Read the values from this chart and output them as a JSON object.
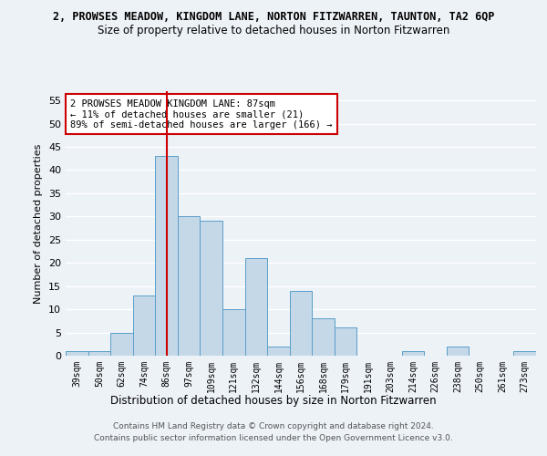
{
  "title": "2, PROWSES MEADOW, KINGDOM LANE, NORTON FITZWARREN, TAUNTON, TA2 6QP",
  "subtitle": "Size of property relative to detached houses in Norton Fitzwarren",
  "xlabel": "Distribution of detached houses by size in Norton Fitzwarren",
  "ylabel": "Number of detached properties",
  "categories": [
    "39sqm",
    "50sqm",
    "62sqm",
    "74sqm",
    "86sqm",
    "97sqm",
    "109sqm",
    "121sqm",
    "132sqm",
    "144sqm",
    "156sqm",
    "168sqm",
    "179sqm",
    "191sqm",
    "203sqm",
    "214sqm",
    "226sqm",
    "238sqm",
    "250sqm",
    "261sqm",
    "273sqm"
  ],
  "values": [
    1,
    1,
    5,
    13,
    43,
    30,
    29,
    10,
    21,
    2,
    14,
    8,
    6,
    0,
    0,
    1,
    0,
    2,
    0,
    0,
    1
  ],
  "bar_color": "#c5d8e8",
  "bar_edge_color": "#5a9ec9",
  "vline_x_index": 4,
  "vline_color": "#cc0000",
  "ylim": [
    0,
    57
  ],
  "yticks": [
    0,
    5,
    10,
    15,
    20,
    25,
    30,
    35,
    40,
    45,
    50,
    55
  ],
  "annotation_text": "2 PROWSES MEADOW KINGDOM LANE: 87sqm\n← 11% of detached houses are smaller (21)\n89% of semi-detached houses are larger (166) →",
  "annotation_box_color": "#ffffff",
  "annotation_box_edge": "#cc0000",
  "footer_line1": "Contains HM Land Registry data © Crown copyright and database right 2024.",
  "footer_line2": "Contains public sector information licensed under the Open Government Licence v3.0.",
  "bg_color": "#edf2f7",
  "grid_color": "#ffffff"
}
